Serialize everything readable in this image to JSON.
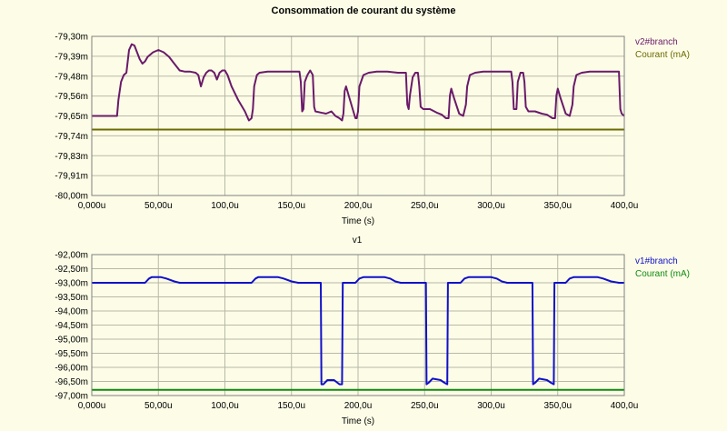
{
  "page": {
    "title": "Consommation de courant du système"
  },
  "chart_data": [
    {
      "type": "line",
      "title": "Consommation de courant du système",
      "xlabel": "Time (s)",
      "ylabel": "",
      "xlim": [
        0,
        400
      ],
      "ylim": [
        -80.0,
        -79.3
      ],
      "x_ticks": [
        "0,000u",
        "50,00u",
        "100,0u",
        "150,0u",
        "200,0u",
        "250,0u",
        "300,0u",
        "350,0u",
        "400,0u"
      ],
      "y_ticks": [
        "-79,30m",
        "-79,39m",
        "-79,48m",
        "-79,56m",
        "-79,65m",
        "-79,74m",
        "-79,83m",
        "-79,91m",
        "-80,00m"
      ],
      "grid": true,
      "legend": "top-right",
      "series": [
        {
          "name": "v2#branch",
          "color": "#6a1a6a",
          "points": [
            [
              0,
              -79.65
            ],
            [
              19,
              -79.65
            ],
            [
              20,
              -79.58
            ],
            [
              22,
              -79.5
            ],
            [
              24,
              -79.47
            ],
            [
              26,
              -79.46
            ],
            [
              28,
              -79.36
            ],
            [
              30,
              -79.335
            ],
            [
              32,
              -79.34
            ],
            [
              34,
              -79.37
            ],
            [
              36,
              -79.4
            ],
            [
              38,
              -79.42
            ],
            [
              40,
              -79.41
            ],
            [
              42,
              -79.39
            ],
            [
              46,
              -79.37
            ],
            [
              50,
              -79.36
            ],
            [
              54,
              -79.37
            ],
            [
              58,
              -79.39
            ],
            [
              62,
              -79.42
            ],
            [
              66,
              -79.45
            ],
            [
              70,
              -79.455
            ],
            [
              74,
              -79.455
            ],
            [
              78,
              -79.46
            ],
            [
              80,
              -79.47
            ],
            [
              82,
              -79.52
            ],
            [
              84,
              -79.48
            ],
            [
              86,
              -79.46
            ],
            [
              88,
              -79.45
            ],
            [
              90,
              -79.45
            ],
            [
              92,
              -79.46
            ],
            [
              94,
              -79.49
            ],
            [
              96,
              -79.46
            ],
            [
              98,
              -79.45
            ],
            [
              100,
              -79.45
            ],
            [
              102,
              -79.47
            ],
            [
              105,
              -79.52
            ],
            [
              110,
              -79.58
            ],
            [
              115,
              -79.63
            ],
            [
              118,
              -79.67
            ],
            [
              120,
              -79.66
            ],
            [
              121,
              -79.62
            ],
            [
              122,
              -79.52
            ],
            [
              124,
              -79.47
            ],
            [
              126,
              -79.46
            ],
            [
              132,
              -79.455
            ],
            [
              140,
              -79.455
            ],
            [
              150,
              -79.455
            ],
            [
              156,
              -79.455
            ],
            [
              157,
              -79.5
            ],
            [
              158,
              -79.63
            ],
            [
              159,
              -79.62
            ],
            [
              160,
              -79.5
            ],
            [
              162,
              -79.47
            ],
            [
              164,
              -79.45
            ],
            [
              166,
              -79.47
            ],
            [
              167,
              -79.61
            ],
            [
              168,
              -79.63
            ],
            [
              172,
              -79.635
            ],
            [
              176,
              -79.64
            ],
            [
              180,
              -79.63
            ],
            [
              183,
              -79.65
            ],
            [
              186,
              -79.66
            ],
            [
              188,
              -79.67
            ],
            [
              189,
              -79.64
            ],
            [
              190,
              -79.54
            ],
            [
              191,
              -79.52
            ],
            [
              193,
              -79.56
            ],
            [
              196,
              -79.62
            ],
            [
              198,
              -79.66
            ],
            [
              199,
              -79.66
            ],
            [
              200,
              -79.63
            ],
            [
              201,
              -79.52
            ],
            [
              204,
              -79.47
            ],
            [
              208,
              -79.46
            ],
            [
              214,
              -79.455
            ],
            [
              222,
              -79.455
            ],
            [
              230,
              -79.46
            ],
            [
              236,
              -79.46
            ],
            [
              237,
              -79.6
            ],
            [
              238,
              -79.62
            ],
            [
              239,
              -79.56
            ],
            [
              241,
              -79.48
            ],
            [
              243,
              -79.46
            ],
            [
              245,
              -79.46
            ],
            [
              246,
              -79.52
            ],
            [
              247,
              -79.61
            ],
            [
              249,
              -79.62
            ],
            [
              254,
              -79.62
            ],
            [
              259,
              -79.635
            ],
            [
              263,
              -79.645
            ],
            [
              266,
              -79.66
            ],
            [
              268,
              -79.66
            ],
            [
              269,
              -79.56
            ],
            [
              270,
              -79.53
            ],
            [
              272,
              -79.57
            ],
            [
              276,
              -79.64
            ],
            [
              279,
              -79.65
            ],
            [
              281,
              -79.6
            ],
            [
              282,
              -79.52
            ],
            [
              284,
              -79.47
            ],
            [
              288,
              -79.46
            ],
            [
              294,
              -79.455
            ],
            [
              302,
              -79.455
            ],
            [
              310,
              -79.455
            ],
            [
              315,
              -79.455
            ],
            [
              316,
              -79.5
            ],
            [
              317,
              -79.62
            ],
            [
              319,
              -79.62
            ],
            [
              320,
              -79.5
            ],
            [
              322,
              -79.46
            ],
            [
              324,
              -79.46
            ],
            [
              325,
              -79.5
            ],
            [
              326,
              -79.61
            ],
            [
              328,
              -79.63
            ],
            [
              333,
              -79.63
            ],
            [
              338,
              -79.64
            ],
            [
              342,
              -79.645
            ],
            [
              346,
              -79.66
            ],
            [
              348,
              -79.66
            ],
            [
              349,
              -79.56
            ],
            [
              350,
              -79.53
            ],
            [
              352,
              -79.57
            ],
            [
              356,
              -79.64
            ],
            [
              359,
              -79.65
            ],
            [
              361,
              -79.6
            ],
            [
              362,
              -79.52
            ],
            [
              364,
              -79.47
            ],
            [
              368,
              -79.46
            ],
            [
              374,
              -79.455
            ],
            [
              382,
              -79.455
            ],
            [
              390,
              -79.455
            ],
            [
              396,
              -79.455
            ],
            [
              397,
              -79.62
            ],
            [
              398,
              -79.64
            ],
            [
              400,
              -79.65
            ]
          ]
        },
        {
          "name": "Courant (mA)",
          "color": "#6b6b00",
          "points": [
            [
              0,
              -79.71
            ],
            [
              400,
              -79.71
            ]
          ]
        }
      ]
    },
    {
      "type": "line",
      "title": "v1",
      "xlabel": "Time (s)",
      "ylabel": "",
      "xlim": [
        0,
        400
      ],
      "ylim": [
        -97.0,
        -92.0
      ],
      "x_ticks": [
        "0,000u",
        "50,00u",
        "100,0u",
        "150,0u",
        "200,0u",
        "250,0u",
        "300,0u",
        "350,0u",
        "400,0u"
      ],
      "y_ticks": [
        "-92,00m",
        "-92,50m",
        "-93,00m",
        "-93,50m",
        "-94,00m",
        "-94,50m",
        "-95,00m",
        "-95,50m",
        "-96,00m",
        "-96,50m",
        "-97,00m"
      ],
      "grid": true,
      "legend": "top-right",
      "series": [
        {
          "name": "v1#branch",
          "color": "#1010c8",
          "points": [
            [
              0,
              -93.0
            ],
            [
              40,
              -93.0
            ],
            [
              43,
              -92.85
            ],
            [
              45,
              -92.8
            ],
            [
              52,
              -92.8
            ],
            [
              56,
              -92.85
            ],
            [
              62,
              -92.95
            ],
            [
              66,
              -93.0
            ],
            [
              120,
              -93.0
            ],
            [
              123,
              -92.85
            ],
            [
              125,
              -92.8
            ],
            [
              140,
              -92.8
            ],
            [
              144,
              -92.85
            ],
            [
              150,
              -92.95
            ],
            [
              155,
              -93.0
            ],
            [
              172,
              -93.0
            ],
            [
              172.5,
              -96.6
            ],
            [
              174,
              -96.6
            ],
            [
              177,
              -96.45
            ],
            [
              182,
              -96.45
            ],
            [
              186,
              -96.6
            ],
            [
              188,
              -96.6
            ],
            [
              188.5,
              -93.0
            ],
            [
              198,
              -93.0
            ],
            [
              201,
              -92.85
            ],
            [
              204,
              -92.8
            ],
            [
              220,
              -92.8
            ],
            [
              224,
              -92.85
            ],
            [
              228,
              -92.95
            ],
            [
              232,
              -93.0
            ],
            [
              251,
              -93.0
            ],
            [
              251.5,
              -96.6
            ],
            [
              253,
              -96.55
            ],
            [
              256,
              -96.4
            ],
            [
              262,
              -96.45
            ],
            [
              265,
              -96.55
            ],
            [
              267,
              -96.6
            ],
            [
              267.5,
              -93.0
            ],
            [
              277,
              -93.0
            ],
            [
              280,
              -92.85
            ],
            [
              283,
              -92.8
            ],
            [
              300,
              -92.8
            ],
            [
              304,
              -92.85
            ],
            [
              308,
              -92.95
            ],
            [
              312,
              -93.0
            ],
            [
              331,
              -93.0
            ],
            [
              331.5,
              -96.6
            ],
            [
              333,
              -96.55
            ],
            [
              336,
              -96.4
            ],
            [
              342,
              -96.45
            ],
            [
              345,
              -96.55
            ],
            [
              347,
              -96.6
            ],
            [
              347.5,
              -93.0
            ],
            [
              356,
              -93.0
            ],
            [
              359,
              -92.85
            ],
            [
              362,
              -92.8
            ],
            [
              380,
              -92.8
            ],
            [
              384,
              -92.85
            ],
            [
              390,
              -92.95
            ],
            [
              396,
              -93.0
            ],
            [
              400,
              -93.0
            ]
          ]
        },
        {
          "name": "Courant (mA)",
          "color": "#108a10",
          "points": [
            [
              0,
              -96.8
            ],
            [
              400,
              -96.8
            ]
          ]
        }
      ]
    }
  ]
}
